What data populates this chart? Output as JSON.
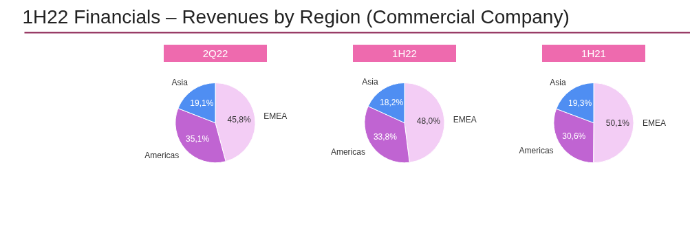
{
  "chart_data": [
    {
      "type": "other",
      "title": "1H22 Financials – Revenues by Region (Commercial Company)"
    },
    {
      "type": "pie",
      "title": "2Q22",
      "categories": [
        "EMEA",
        "Americas",
        "Asia"
      ],
      "values": [
        45.8,
        35.1,
        19.1
      ],
      "value_labels": [
        "45,8%",
        "35,1%",
        "19,1%"
      ],
      "colors": [
        "#f3cdf5",
        "#c064d2",
        "#4f8ef2"
      ],
      "legend": false
    },
    {
      "type": "pie",
      "title": "1H22",
      "categories": [
        "EMEA",
        "Americas",
        "Asia"
      ],
      "values": [
        48.0,
        33.8,
        18.2
      ],
      "value_labels": [
        "48,0%",
        "33,8%",
        "18,2%"
      ],
      "colors": [
        "#f3cdf5",
        "#c064d2",
        "#4f8ef2"
      ],
      "legend": false
    },
    {
      "type": "pie",
      "title": "1H21",
      "categories": [
        "EMEA",
        "Americas",
        "Asia"
      ],
      "values": [
        50.1,
        30.6,
        19.3
      ],
      "value_labels": [
        "50,1%",
        "30,6%",
        "19,3%"
      ],
      "colors": [
        "#f3cdf5",
        "#c064d2",
        "#4f8ef2"
      ],
      "legend": false
    }
  ]
}
